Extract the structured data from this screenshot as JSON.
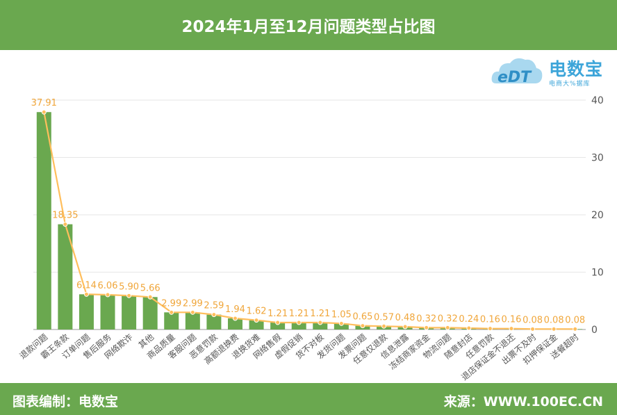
{
  "header": {
    "title": "2024年1月至12月问题类型占比图"
  },
  "footer": {
    "left": "图表编制：电数宝",
    "right": "来源：WWW.100EC.CN"
  },
  "logo": {
    "mark": "eDT",
    "name": "电数宝",
    "sub": "电商大%据库",
    "colors": {
      "blue": "#3da5d9",
      "cloud": "#a9d8ef"
    }
  },
  "colors": {
    "bar": "#6aa84f",
    "line": "#ffbe5c",
    "label": "#f0a63a",
    "header": "#6aa84f"
  },
  "chart_data": {
    "type": "bar",
    "title": "2024年1月至12月问题类型占比图",
    "categories": [
      "退款问题",
      "霸王条款",
      "订单问题",
      "售后服务",
      "网络欺诈",
      "其他",
      "商品质量",
      "客服问题",
      "恶意罚款",
      "高额退换费",
      "退换货难",
      "网络售假",
      "虚假促销",
      "货不对板",
      "发货问题",
      "发票问题",
      "任意仅退款",
      "信息泄露",
      "冻结商家资金",
      "物流问题",
      "随意封店",
      "任意罚款",
      "退店保证金不退还",
      "出票不及时",
      "扣押保证金",
      "送餐超时"
    ],
    "values": [
      37.91,
      18.35,
      6.14,
      6.06,
      5.9,
      5.66,
      2.99,
      2.99,
      2.59,
      1.94,
      1.62,
      1.21,
      1.21,
      1.21,
      1.05,
      0.65,
      0.57,
      0.48,
      0.32,
      0.32,
      0.24,
      0.16,
      0.16,
      0.08,
      0.08,
      0.08
    ],
    "value_labels": [
      "37.91",
      "18.35",
      "6.14",
      "6.06",
      "5.90",
      "5.66",
      "2.99",
      "2.99",
      "2.59",
      "1.94",
      "1.62",
      "1.21",
      "1.21",
      "1.21",
      "1.05",
      "0.65",
      "0.57",
      "0.48",
      "0.32",
      "0.32",
      "0.24",
      "0.16",
      "0.16",
      "0.08",
      "0.08",
      "0.08"
    ],
    "series": [
      {
        "type": "bar",
        "values": [
          37.91,
          18.35,
          6.14,
          6.06,
          5.9,
          5.66,
          2.99,
          2.99,
          2.59,
          1.94,
          1.62,
          1.21,
          1.21,
          1.21,
          1.05,
          0.65,
          0.57,
          0.48,
          0.32,
          0.32,
          0.24,
          0.16,
          0.16,
          0.08,
          0.08,
          0.08
        ]
      },
      {
        "type": "line",
        "values": [
          37.91,
          18.35,
          6.14,
          6.06,
          5.9,
          5.66,
          2.99,
          2.99,
          2.59,
          1.94,
          1.62,
          1.21,
          1.21,
          1.21,
          1.05,
          0.65,
          0.57,
          0.48,
          0.32,
          0.32,
          0.24,
          0.16,
          0.16,
          0.08,
          0.08,
          0.08
        ]
      }
    ],
    "ylim": [
      0,
      40
    ],
    "yticks": [
      "0",
      "10",
      "20",
      "30",
      "40"
    ],
    "y_axis_side": "right",
    "grid": true,
    "xlabel": "",
    "ylabel": ""
  }
}
